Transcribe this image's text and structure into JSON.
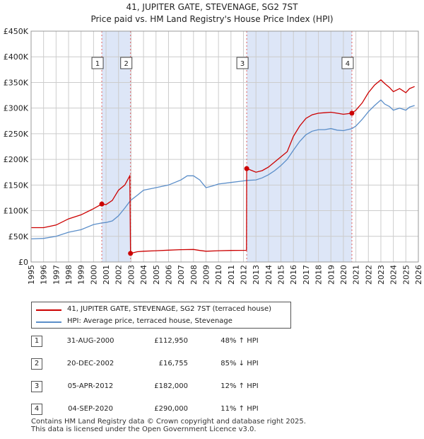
{
  "title": {
    "line1": "41, JUPITER GATE, STEVENAGE, SG2 7ST",
    "line2": "Price paid vs. HM Land Registry's House Price Index (HPI)"
  },
  "chart_data": {
    "type": "line",
    "x_range": [
      1995,
      2026
    ],
    "ylim": [
      0,
      450000
    ],
    "y_ticks": [
      {
        "value": 0,
        "label": "£0"
      },
      {
        "value": 50000,
        "label": "£50K"
      },
      {
        "value": 100000,
        "label": "£100K"
      },
      {
        "value": 150000,
        "label": "£150K"
      },
      {
        "value": 200000,
        "label": "£200K"
      },
      {
        "value": 250000,
        "label": "£250K"
      },
      {
        "value": 300000,
        "label": "£300K"
      },
      {
        "value": 350000,
        "label": "£350K"
      },
      {
        "value": 400000,
        "label": "£400K"
      },
      {
        "value": 450000,
        "label": "£450K"
      }
    ],
    "x_ticks": [
      "1995",
      "1996",
      "1997",
      "1998",
      "1999",
      "2000",
      "2001",
      "2002",
      "2003",
      "2004",
      "2005",
      "2006",
      "2007",
      "2008",
      "2009",
      "2010",
      "2011",
      "2012",
      "2013",
      "2014",
      "2015",
      "2016",
      "2017",
      "2018",
      "2019",
      "2020",
      "2021",
      "2022",
      "2023",
      "2024",
      "2025",
      "2026"
    ],
    "series": [
      {
        "name": "41, JUPITER GATE, STEVENAGE, SG2 7ST (terraced house)",
        "color": "#cc0000",
        "points": [
          [
            1995.0,
            67000
          ],
          [
            1996.0,
            67000
          ],
          [
            1997.0,
            72000
          ],
          [
            1998.0,
            84000
          ],
          [
            1999.0,
            92000
          ],
          [
            2000.0,
            104000
          ],
          [
            2000.66,
            112950
          ],
          [
            2001.0,
            112000
          ],
          [
            2001.5,
            120000
          ],
          [
            2002.0,
            140000
          ],
          [
            2002.5,
            150000
          ],
          [
            2002.9,
            168000
          ],
          [
            2002.96,
            16755
          ],
          [
            2003.5,
            20000
          ],
          [
            2004.0,
            21000
          ],
          [
            2005.0,
            22000
          ],
          [
            2006.0,
            23000
          ],
          [
            2007.0,
            24000
          ],
          [
            2008.0,
            24500
          ],
          [
            2008.5,
            22500
          ],
          [
            2009.0,
            21000
          ],
          [
            2010.0,
            22000
          ],
          [
            2011.0,
            22500
          ],
          [
            2012.24,
            22800
          ],
          [
            2012.26,
            182000
          ],
          [
            2012.5,
            180000
          ],
          [
            2013.0,
            175000
          ],
          [
            2013.5,
            178000
          ],
          [
            2014.0,
            185000
          ],
          [
            2014.5,
            195000
          ],
          [
            2015.0,
            205000
          ],
          [
            2015.5,
            215000
          ],
          [
            2016.0,
            245000
          ],
          [
            2016.5,
            265000
          ],
          [
            2017.0,
            280000
          ],
          [
            2017.5,
            287000
          ],
          [
            2018.0,
            290000
          ],
          [
            2018.5,
            291000
          ],
          [
            2019.0,
            292000
          ],
          [
            2019.5,
            290000
          ],
          [
            2020.0,
            288000
          ],
          [
            2020.68,
            290000
          ],
          [
            2021.0,
            296000
          ],
          [
            2021.5,
            310000
          ],
          [
            2022.0,
            330000
          ],
          [
            2022.5,
            345000
          ],
          [
            2023.0,
            355000
          ],
          [
            2023.3,
            348000
          ],
          [
            2023.7,
            340000
          ],
          [
            2024.0,
            332000
          ],
          [
            2024.5,
            338000
          ],
          [
            2025.0,
            330000
          ],
          [
            2025.3,
            338000
          ],
          [
            2025.7,
            342000
          ]
        ]
      },
      {
        "name": "HPI: Average price, terraced house, Stevenage",
        "color": "#5b8ec9",
        "points": [
          [
            1995.0,
            45000
          ],
          [
            1996.0,
            46000
          ],
          [
            1997.0,
            50000
          ],
          [
            1998.0,
            58000
          ],
          [
            1999.0,
            63000
          ],
          [
            2000.0,
            73000
          ],
          [
            2000.66,
            76000
          ],
          [
            2001.0,
            77000
          ],
          [
            2001.5,
            80000
          ],
          [
            2002.0,
            90000
          ],
          [
            2002.5,
            105000
          ],
          [
            2002.96,
            120000
          ],
          [
            2003.5,
            130000
          ],
          [
            2004.0,
            140000
          ],
          [
            2005.0,
            145000
          ],
          [
            2006.0,
            150000
          ],
          [
            2007.0,
            160000
          ],
          [
            2007.5,
            168000
          ],
          [
            2008.0,
            168000
          ],
          [
            2008.5,
            160000
          ],
          [
            2009.0,
            145000
          ],
          [
            2009.5,
            148000
          ],
          [
            2010.0,
            152000
          ],
          [
            2011.0,
            155000
          ],
          [
            2012.0,
            158000
          ],
          [
            2012.26,
            159000
          ],
          [
            2013.0,
            160000
          ],
          [
            2013.5,
            164000
          ],
          [
            2014.0,
            170000
          ],
          [
            2014.5,
            178000
          ],
          [
            2015.0,
            188000
          ],
          [
            2015.5,
            200000
          ],
          [
            2016.0,
            218000
          ],
          [
            2016.5,
            235000
          ],
          [
            2017.0,
            248000
          ],
          [
            2017.5,
            255000
          ],
          [
            2018.0,
            258000
          ],
          [
            2018.5,
            258000
          ],
          [
            2019.0,
            260000
          ],
          [
            2019.5,
            257000
          ],
          [
            2020.0,
            256000
          ],
          [
            2020.68,
            260000
          ],
          [
            2021.0,
            265000
          ],
          [
            2021.5,
            278000
          ],
          [
            2022.0,
            293000
          ],
          [
            2022.5,
            305000
          ],
          [
            2023.0,
            316000
          ],
          [
            2023.3,
            308000
          ],
          [
            2023.7,
            303000
          ],
          [
            2024.0,
            296000
          ],
          [
            2024.5,
            300000
          ],
          [
            2025.0,
            296000
          ],
          [
            2025.3,
            302000
          ],
          [
            2025.7,
            305000
          ]
        ]
      }
    ],
    "sales": [
      {
        "num": "1",
        "x": 2000.66,
        "price": 112950
      },
      {
        "num": "2",
        "x": 2002.96,
        "price": 16755
      },
      {
        "num": "3",
        "x": 2012.26,
        "price": 182000
      },
      {
        "num": "4",
        "x": 2020.68,
        "price": 290000
      }
    ],
    "shaded_periods": [
      [
        2000.66,
        2002.96
      ],
      [
        2012.26,
        2020.68
      ]
    ],
    "colors": {
      "shade": "#dde6f7",
      "grid": "#cccccc",
      "marker_line": "#e06060"
    }
  },
  "legend": {
    "property": "41, JUPITER GATE, STEVENAGE, SG2 7ST (terraced house)",
    "hpi": "HPI: Average price, terraced house, Stevenage"
  },
  "sales_table": [
    {
      "num": "1",
      "date": "31-AUG-2000",
      "price": "£112,950",
      "hpi": "48% ↑ HPI"
    },
    {
      "num": "2",
      "date": "20-DEC-2002",
      "price": "£16,755",
      "hpi": "85% ↓ HPI"
    },
    {
      "num": "3",
      "date": "05-APR-2012",
      "price": "£182,000",
      "hpi": "12% ↑ HPI"
    },
    {
      "num": "4",
      "date": "04-SEP-2020",
      "price": "£290,000",
      "hpi": "11% ↑ HPI"
    }
  ],
  "footer": {
    "line1": "Contains HM Land Registry data © Crown copyright and database right 2025.",
    "line2": "This data is licensed under the Open Government Licence v3.0."
  }
}
